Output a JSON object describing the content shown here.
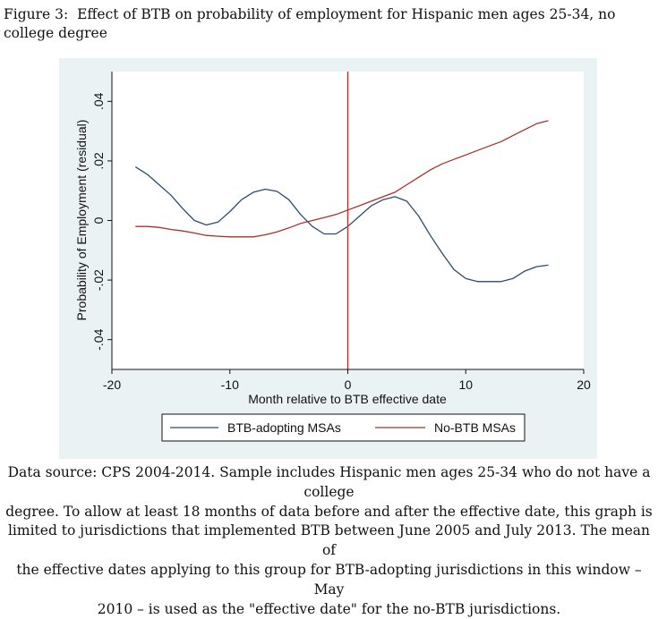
{
  "caption": {
    "label": "Figure 3:",
    "text": "Effect of BTB on probability of employment for Hispanic men ages 25-34, no college degree"
  },
  "chart_data": {
    "type": "line",
    "xlabel": "Month relative to BTB effective date",
    "ylabel": "Probability of Employment (residual)",
    "xlim": [
      -20,
      20
    ],
    "ylim": [
      -0.05,
      0.05
    ],
    "xticks": [
      -20,
      -10,
      0,
      10,
      20
    ],
    "yticks": [
      -0.04,
      -0.02,
      0,
      0.02,
      0.04
    ],
    "xtick_labels": [
      "-20",
      "-10",
      "0",
      "10",
      "20"
    ],
    "ytick_labels": [
      "-.04",
      "-.02",
      "0",
      ".02",
      ".04"
    ],
    "vline": {
      "x": 0,
      "color": "#d6281e"
    },
    "grid": false,
    "legend_position": "bottom",
    "series": [
      {
        "name": "BTB-adopting MSAs",
        "color": "#2a4c6e",
        "points": [
          [
            -18,
            0.018
          ],
          [
            -17,
            0.0155
          ],
          [
            -16,
            0.012
          ],
          [
            -15,
            0.0085
          ],
          [
            -14,
            0.004
          ],
          [
            -13,
            0.0
          ],
          [
            -12,
            -0.0015
          ],
          [
            -11,
            -0.0005
          ],
          [
            -10,
            0.003
          ],
          [
            -9,
            0.007
          ],
          [
            -8,
            0.0095
          ],
          [
            -7,
            0.0105
          ],
          [
            -6,
            0.0098
          ],
          [
            -5,
            0.007
          ],
          [
            -4,
            0.002
          ],
          [
            -3,
            -0.002
          ],
          [
            -2,
            -0.0045
          ],
          [
            -1,
            -0.0045
          ],
          [
            0,
            -0.002
          ],
          [
            1,
            0.0015
          ],
          [
            2,
            0.005
          ],
          [
            3,
            0.007
          ],
          [
            4,
            0.008
          ],
          [
            5,
            0.0065
          ],
          [
            6,
            0.0015
          ],
          [
            7,
            -0.005
          ],
          [
            8,
            -0.011
          ],
          [
            9,
            -0.0165
          ],
          [
            10,
            -0.0195
          ],
          [
            11,
            -0.0205
          ],
          [
            12,
            -0.0205
          ],
          [
            13,
            -0.0205
          ],
          [
            14,
            -0.0195
          ],
          [
            15,
            -0.017
          ],
          [
            16,
            -0.0155
          ],
          [
            17,
            -0.015
          ]
        ]
      },
      {
        "name": "No-BTB MSAs",
        "color": "#a8322b",
        "points": [
          [
            -18,
            -0.002
          ],
          [
            -17,
            -0.002
          ],
          [
            -16,
            -0.0023
          ],
          [
            -15,
            -0.003
          ],
          [
            -14,
            -0.0035
          ],
          [
            -13,
            -0.0042
          ],
          [
            -12,
            -0.005
          ],
          [
            -11,
            -0.0053
          ],
          [
            -10,
            -0.0055
          ],
          [
            -9,
            -0.0055
          ],
          [
            -8,
            -0.0055
          ],
          [
            -7,
            -0.0048
          ],
          [
            -6,
            -0.0038
          ],
          [
            -5,
            -0.0025
          ],
          [
            -4,
            -0.001
          ],
          [
            -3,
            0.0
          ],
          [
            -2,
            0.001
          ],
          [
            -1,
            0.002
          ],
          [
            0,
            0.0035
          ],
          [
            1,
            0.005
          ],
          [
            2,
            0.0065
          ],
          [
            3,
            0.008
          ],
          [
            4,
            0.0095
          ],
          [
            5,
            0.012
          ],
          [
            6,
            0.0145
          ],
          [
            7,
            0.017
          ],
          [
            8,
            0.019
          ],
          [
            9,
            0.0205
          ],
          [
            10,
            0.022
          ],
          [
            11,
            0.0235
          ],
          [
            12,
            0.025
          ],
          [
            13,
            0.0265
          ],
          [
            14,
            0.0285
          ],
          [
            15,
            0.0305
          ],
          [
            16,
            0.0325
          ],
          [
            17,
            0.0335
          ]
        ]
      }
    ]
  },
  "note": {
    "line1": "Data source: CPS 2004-2014. Sample includes Hispanic men ages 25-34 who do not have a college",
    "line2": "degree. To allow at least 18 months of data before and after the effective date, this graph is",
    "line3": "limited to jurisdictions that implemented BTB between June 2005 and July 2013. The mean of",
    "line4": "the effective dates applying to this group for BTB-adopting jurisdictions in this window – May",
    "line5": "2010 – is used as the \"effective date\" for the no-BTB jurisdictions."
  }
}
